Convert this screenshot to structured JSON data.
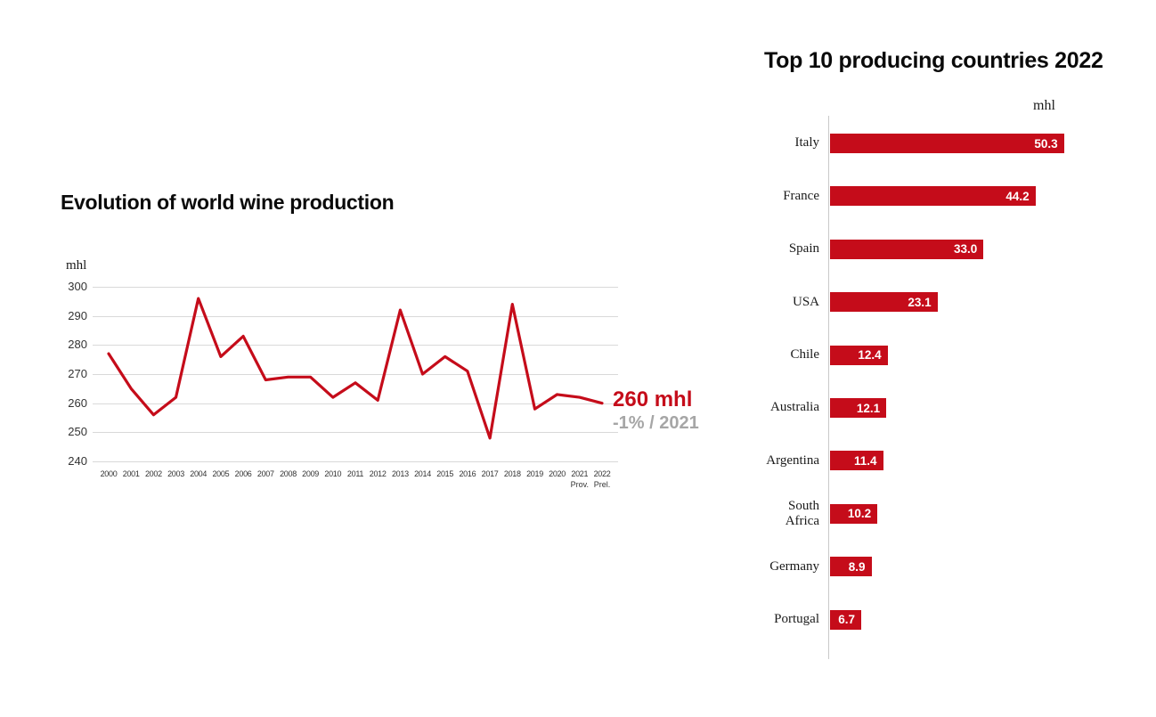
{
  "colors": {
    "accent_red": "#c50c1a",
    "muted_gray": "#a6a6a6",
    "grid_gray": "#d9d9d9",
    "axis_gray": "#c9c9c9"
  },
  "chart_data": [
    {
      "type": "line",
      "title": "Evolution of world wine production",
      "ylabel": "mhl",
      "ylim": [
        240,
        300
      ],
      "yticks": [
        300,
        290,
        280,
        270,
        260,
        250,
        240
      ],
      "grid": true,
      "line_color": "#c50c1a",
      "x": [
        "2000",
        "2001",
        "2002",
        "2003",
        "2004",
        "2005",
        "2006",
        "2007",
        "2008",
        "2009",
        "2010",
        "2011",
        "2012",
        "2013",
        "2014",
        "2015",
        "2016",
        "2017",
        "2018",
        "2019",
        "2020",
        "2021",
        "2022"
      ],
      "values": [
        277,
        265,
        256,
        262,
        296,
        276,
        283,
        268,
        269,
        269,
        262,
        267,
        261,
        292,
        270,
        276,
        271,
        248,
        294,
        258,
        263,
        262,
        260
      ],
      "x_footnotes": {
        "2021": "Prov.",
        "2022": "Prel."
      },
      "annotations": [
        {
          "text": "260 mhl",
          "color": "#c50c1a"
        },
        {
          "text": "-1% / 2021",
          "color": "#a6a6a6"
        }
      ]
    },
    {
      "type": "bar",
      "orientation": "horizontal",
      "title": "Top 10 producing countries 2022",
      "unit_label": "mhl",
      "bar_color": "#c50c1a",
      "xlim": [
        0,
        52
      ],
      "categories": [
        "Italy",
        "France",
        "Spain",
        "USA",
        "Chile",
        "Australia",
        "Argentina",
        "South Africa",
        "Germany",
        "Portugal"
      ],
      "categories_display": [
        "Italy",
        "France",
        "Spain",
        "USA",
        "Chile",
        "Australia",
        "Argentina",
        "South\nAfrica",
        "Germany",
        "Portugal"
      ],
      "values": [
        50.3,
        44.2,
        33.0,
        23.1,
        12.4,
        12.1,
        11.4,
        10.2,
        8.9,
        6.7
      ],
      "value_labels": [
        "50.3",
        "44.2",
        "33.0",
        "23.1",
        "12.4",
        "12.1",
        "11.4",
        "10.2",
        "8.9",
        "6.7"
      ],
      "legend": null
    }
  ]
}
